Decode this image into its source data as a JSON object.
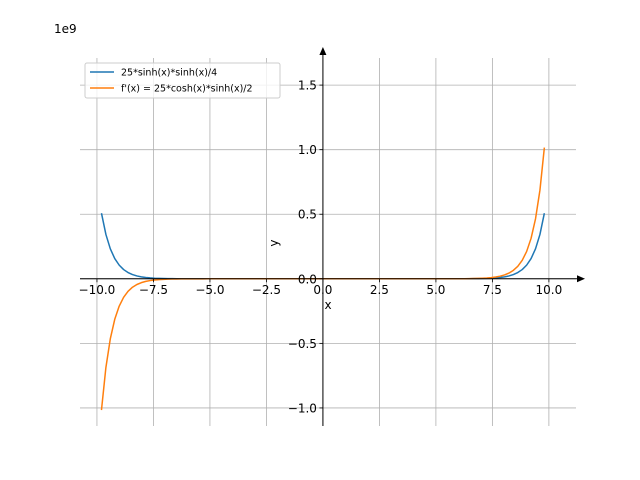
{
  "chart_data": {
    "type": "line",
    "title": "",
    "xlabel": "x",
    "ylabel": "y",
    "y_scale_label": "1e9",
    "xlim": [
      -10.75,
      11.2
    ],
    "ylim": [
      -1.14,
      1.71
    ],
    "x_ticks": [
      -10.0,
      -7.5,
      -5.0,
      -2.5,
      0.0,
      2.5,
      5.0,
      7.5,
      10.0
    ],
    "x_tick_labels": [
      "−10.0",
      "−7.5",
      "−5.0",
      "−2.5",
      "0.0",
      "2.5",
      "5.0",
      "7.5",
      "10.0"
    ],
    "y_ticks": [
      -1.0,
      -0.5,
      0.0,
      0.5,
      1.0,
      1.5
    ],
    "y_tick_labels": [
      "−1.0",
      "−0.5",
      "0.0",
      "0.5",
      "1.0",
      "1.5"
    ],
    "grid": true,
    "legend_position": "top-left",
    "x_range": [
      -9.8,
      9.8
    ],
    "series": [
      {
        "name": "25*sinh(x)*sinh(x)/4",
        "color": "#1f77b4",
        "formula": "25*sinh(x)*sinh(x)/4"
      },
      {
        "name": "f'(x) = 25*cosh(x)*sinh(x)/2",
        "color": "#ff7f0e",
        "formula": "25*cosh(x)*sinh(x)/2"
      }
    ]
  }
}
